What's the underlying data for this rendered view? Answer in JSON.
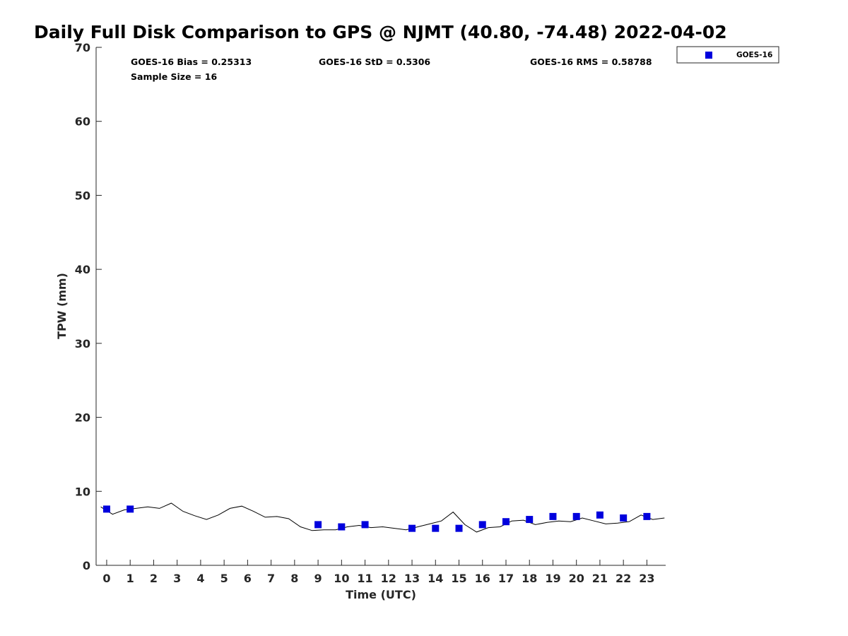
{
  "chart_data": {
    "type": "scatter",
    "title": "Daily Full Disk Comparison to GPS @ NJMT (40.80, -74.48) 2022-04-02",
    "xlabel": "Time (UTC)",
    "ylabel": "TPW (mm)",
    "xlim": [
      -0.45,
      23.8
    ],
    "ylim": [
      0,
      70
    ],
    "x_ticks": [
      0,
      1,
      2,
      3,
      4,
      5,
      6,
      7,
      8,
      9,
      10,
      11,
      12,
      13,
      14,
      15,
      16,
      17,
      18,
      19,
      20,
      21,
      22,
      23
    ],
    "y_ticks": [
      0,
      10,
      20,
      30,
      40,
      50,
      60,
      70
    ],
    "grid": false,
    "legend_position": "top-right",
    "stats": {
      "bias": "GOES-16 Bias = 0.25313",
      "std": "GOES-16 StD = 0.5306",
      "rms": "GOES-16 RMS = 0.58788",
      "sample_size": "Sample Size = 16"
    },
    "series": [
      {
        "name": "GOES-16",
        "kind": "markers",
        "marker": "square",
        "color": "#0000dd",
        "x": [
          0,
          1,
          9,
          10,
          11,
          13,
          14,
          15,
          16,
          17,
          18,
          19,
          20,
          21,
          22,
          23
        ],
        "y": [
          7.6,
          7.6,
          5.5,
          5.2,
          5.5,
          5.0,
          5.0,
          5.0,
          5.5,
          5.9,
          6.2,
          6.6,
          6.6,
          6.8,
          6.4,
          6.6
        ]
      },
      {
        "kind": "line",
        "color": "#000000",
        "x": [
          -0.25,
          0.25,
          0.75,
          1.25,
          1.75,
          2.25,
          2.75,
          3.25,
          3.75,
          4.25,
          4.75,
          5.25,
          5.75,
          6.25,
          6.75,
          7.25,
          7.75,
          8.25,
          8.75,
          9.25,
          9.75,
          10.25,
          10.75,
          11.25,
          11.75,
          12.25,
          12.75,
          13.25,
          13.75,
          14.25,
          14.75,
          15.25,
          15.75,
          16.25,
          16.75,
          17.25,
          17.75,
          18.25,
          18.75,
          19.25,
          19.75,
          20.25,
          20.75,
          21.25,
          21.75,
          22.25,
          22.75,
          23.25,
          23.75
        ],
        "y": [
          7.9,
          6.9,
          7.5,
          7.7,
          7.9,
          7.7,
          8.4,
          7.3,
          6.7,
          6.2,
          6.8,
          7.7,
          8.0,
          7.3,
          6.5,
          6.6,
          6.3,
          5.2,
          4.7,
          4.8,
          4.8,
          5.2,
          5.4,
          5.1,
          5.2,
          5.0,
          4.8,
          5.2,
          5.6,
          6.0,
          7.2,
          5.5,
          4.5,
          5.1,
          5.2,
          6.0,
          6.1,
          5.5,
          5.8,
          6.0,
          5.9,
          6.4,
          6.0,
          5.6,
          5.7,
          5.9,
          6.8,
          6.2,
          6.4
        ]
      }
    ]
  }
}
